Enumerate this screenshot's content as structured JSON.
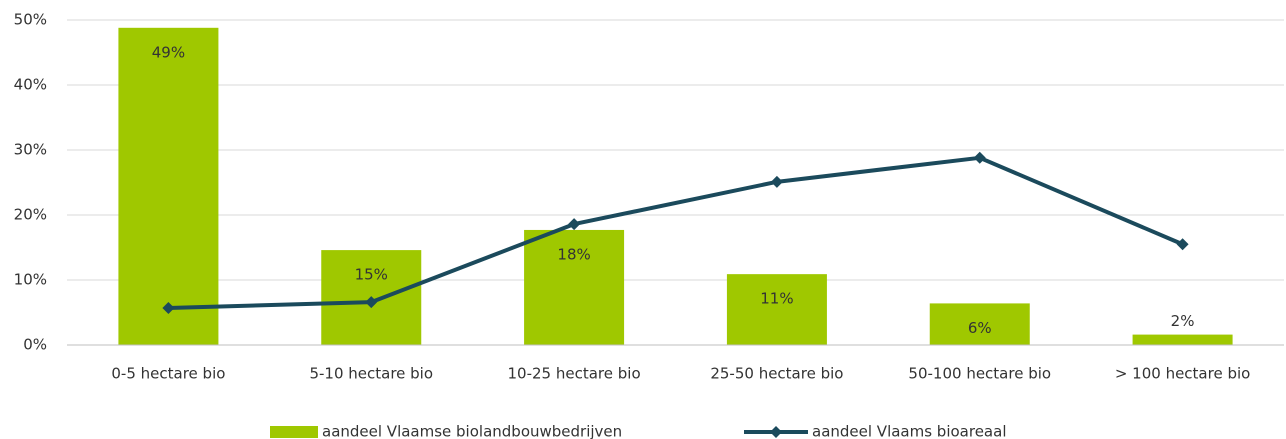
{
  "chart_data": {
    "type": "bar-line",
    "categories": [
      "0-5 hectare bio",
      "5-10 hectare bio",
      "10-25 hectare bio",
      "25-50 hectare bio",
      "50-100 hectare bio",
      "> 100 hectare bio"
    ],
    "series": [
      {
        "name": "aandeel Vlaamse biolandbouwbedrijven",
        "type": "bar",
        "color": "#9fc800",
        "values": [
          48.8,
          14.6,
          17.7,
          10.9,
          6.4,
          1.6
        ],
        "value_labels": [
          "49%",
          "15%",
          "18%",
          "11%",
          "6%",
          "2%"
        ]
      },
      {
        "name": "aandeel Vlaams bioareaal",
        "type": "line",
        "color": "#1b4a5c",
        "values": [
          5.7,
          6.6,
          18.6,
          25.1,
          28.8,
          15.5
        ]
      }
    ],
    "ylim": [
      0,
      50
    ],
    "yticks": [
      {
        "value": 0,
        "label": "0%"
      },
      {
        "value": 10,
        "label": "10%"
      },
      {
        "value": 20,
        "label": "20%"
      },
      {
        "value": 30,
        "label": "30%"
      },
      {
        "value": 40,
        "label": "40%"
      },
      {
        "value": 50,
        "label": "50%"
      }
    ],
    "grid": true,
    "legend": "bottom"
  }
}
